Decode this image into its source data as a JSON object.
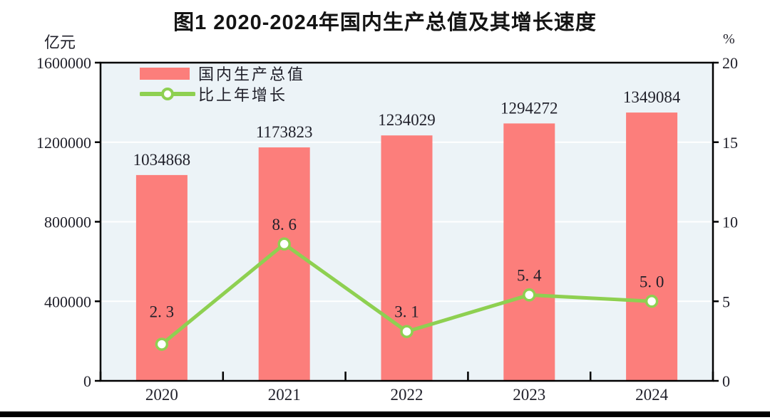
{
  "title": "图1  2020-2024年国内生产总值及其增长速度",
  "left_axis_unit": "亿元",
  "right_axis_unit": "%",
  "legend": {
    "items": [
      {
        "label": "国内生产总值",
        "marker": "bar-swatch"
      },
      {
        "label": "比上年增长",
        "marker": "line-with-circle"
      }
    ]
  },
  "colors": {
    "bar": "#fc7e7b",
    "line": "#8ed051",
    "marker_fill": "#ffffff",
    "plot_background": "#ecf3f7",
    "gridline": "#ffffff",
    "axis": "#000000",
    "text": "#1f1f29"
  },
  "chart_data": {
    "type": "bar+line combo",
    "title": "图1 2020-2024年国内生产总值及其增长速度",
    "categories": [
      "2020",
      "2021",
      "2022",
      "2023",
      "2024"
    ],
    "series": [
      {
        "name": "国内生产总值",
        "type": "bar",
        "axis": "left",
        "values": [
          1034868,
          1173823,
          1234029,
          1294272,
          1349084
        ],
        "value_labels": [
          "1034868",
          "1173823",
          "1234029",
          "1294272",
          "1349084"
        ]
      },
      {
        "name": "比上年增长",
        "type": "line",
        "axis": "right",
        "values": [
          2.3,
          8.6,
          3.1,
          5.4,
          5.0
        ],
        "value_labels": [
          "2. 3",
          "8. 6",
          "3. 1",
          "5. 4",
          "5. 0"
        ]
      }
    ],
    "left_axis": {
      "unit": "亿元",
      "range": [
        0,
        1600000
      ],
      "tick_values": [
        0,
        400000,
        800000,
        1200000,
        1600000
      ],
      "tick_labels": [
        "0",
        "400000",
        "800000",
        "1200000",
        "1600000"
      ]
    },
    "right_axis": {
      "unit": "%",
      "range": [
        0,
        20
      ],
      "tick_values": [
        0,
        5,
        10,
        15,
        20
      ],
      "tick_labels": [
        "0",
        "5",
        "10",
        "15",
        "20"
      ]
    },
    "grid": "horizontal white lines at left-axis ticks",
    "legend_position": "top-left inside plot"
  }
}
